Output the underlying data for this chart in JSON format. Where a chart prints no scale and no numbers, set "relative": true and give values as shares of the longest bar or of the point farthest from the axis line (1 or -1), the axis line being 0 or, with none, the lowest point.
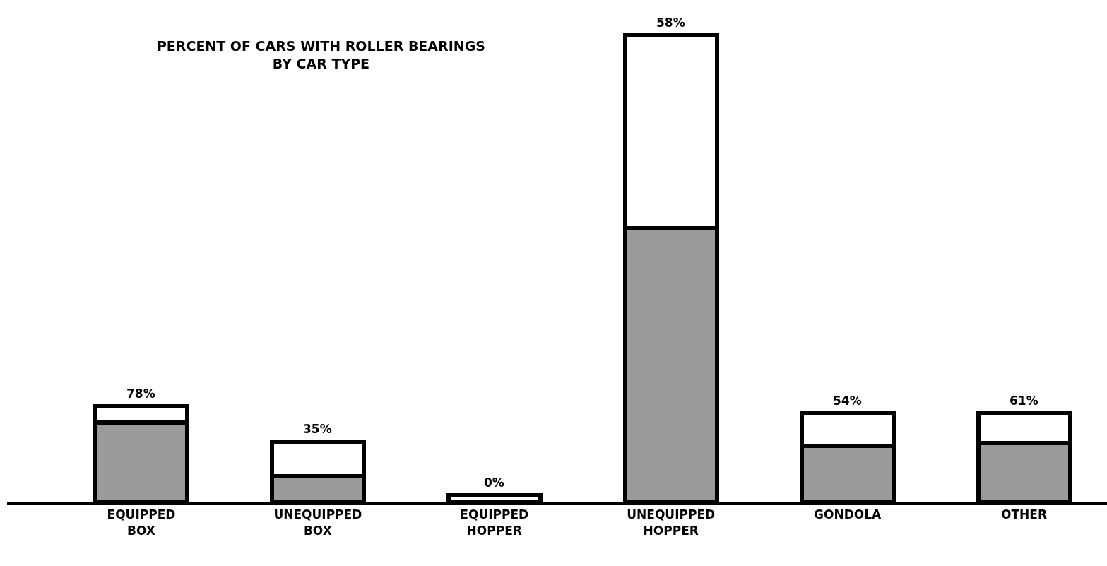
{
  "chart_data": {
    "type": "bar",
    "title": "PERCENT OF CARS WITH ROLLER BEARINGS\nBY CAR TYPE",
    "categories": [
      "EQUIPPED\nBOX",
      "UNEQUIPPED\nBOX",
      "EQUIPPED\nHOPPER",
      "UNEQUIPPED\nHOPPER",
      "GONDOLA",
      "OTHER"
    ],
    "relative": true,
    "stacked": true,
    "series": [
      {
        "color": "#9a9a9a",
        "values": [
          0.17,
          0.055,
          0,
          0.586,
          0.12,
          0.126
        ]
      },
      {
        "color": "#ffffff",
        "values": [
          0.035,
          0.074,
          0.014,
          0.414,
          0.069,
          0.063
        ]
      }
    ],
    "annotations": [
      {
        "text": "78%",
        "x": "EQUIPPED\nBOX",
        "y": 0.205
      },
      {
        "text": "35%",
        "x": "UNEQUIPPED\nBOX",
        "y": 0.129
      },
      {
        "text": "0%",
        "x": "EQUIPPED\nHOPPER",
        "y": 0.014
      },
      {
        "text": "58%",
        "x": "UNEQUIPPED\nHOPPER",
        "y": 1
      },
      {
        "text": "54%",
        "x": "GONDOLA",
        "y": 0.189
      },
      {
        "text": "61%",
        "x": "OTHER",
        "y": 0.189
      }
    ],
    "grid": false
  }
}
